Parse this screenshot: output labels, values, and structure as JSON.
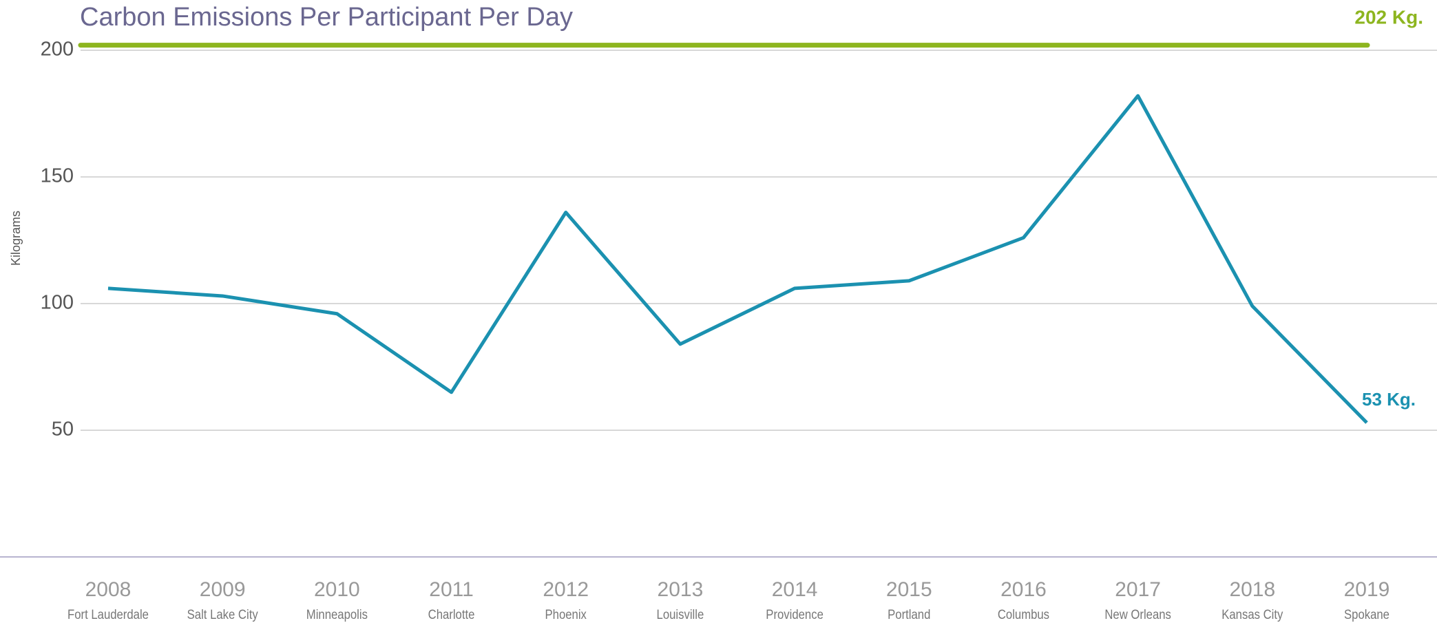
{
  "chart_data": {
    "type": "line",
    "title": "Carbon Emissions Per Participant Per Day",
    "y_label": "Kilograms",
    "categories": [
      "2008",
      "2009",
      "2010",
      "2011",
      "2012",
      "2013",
      "2014",
      "2015",
      "2016",
      "2017",
      "2018",
      "2019"
    ],
    "cities": [
      "Fort Lauderdale",
      "Salt Lake City",
      "Minneapolis",
      "Charlotte",
      "Phoenix",
      "Louisville",
      "Providence",
      "Portland",
      "Columbus",
      "New Orleans",
      "Kansas City",
      "Spokane"
    ],
    "series": [
      {
        "color": "#1b91b0",
        "values": [
          106,
          103,
          96,
          65,
          136,
          84,
          106,
          109,
          126,
          182,
          99,
          53
        ],
        "value_labels": [
          null,
          null,
          null,
          null,
          null,
          null,
          null,
          null,
          null,
          null,
          null,
          "53 Kg."
        ]
      }
    ],
    "reference_line": {
      "value": 202,
      "label": "202 Kg.",
      "color": "#8db51f"
    },
    "ylim": [
      0,
      200
    ],
    "yticks": [
      50,
      100,
      150,
      200
    ],
    "grid": true
  }
}
